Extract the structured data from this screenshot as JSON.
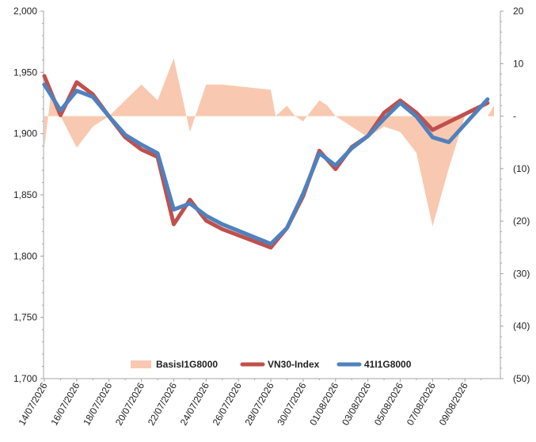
{
  "chart_data": {
    "type": "line",
    "title": "",
    "grid": false,
    "legend_position": "bottom-inside",
    "left_axis": {
      "ylim": [
        1700,
        2000
      ],
      "ticks": [
        2000,
        1950,
        1900,
        1850,
        1800,
        1750,
        1700
      ],
      "tick_labels": [
        "2,000",
        "1,950",
        "1,900",
        "1,850",
        "1,800",
        "1,750",
        "1,700"
      ]
    },
    "right_axis": {
      "ylim": [
        -50,
        20
      ],
      "ticks": [
        20,
        10,
        0,
        -10,
        -20,
        -30,
        -40,
        -50
      ],
      "tick_labels": [
        "20",
        "10",
        "-",
        "(10)",
        "(20)",
        "(30)",
        "(40)",
        "(50)"
      ]
    },
    "x_tick_labels": [
      "14/07/2026",
      "16/07/2026",
      "18/07/2026",
      "20/07/2026",
      "22/07/2026",
      "24/07/2026",
      "26/07/2026",
      "28/07/2026",
      "30/07/2026",
      "01/08/2026",
      "03/08/2026",
      "05/08/2026",
      "07/08/2026",
      "09/08/2026"
    ],
    "x_day_range": [
      0,
      27.8
    ],
    "series": [
      {
        "name": "BasisI1G8000",
        "type": "area",
        "axis": "right",
        "color": "#f8c9b0",
        "x": [
          0,
          0.4,
          1,
          2,
          3,
          4,
          5,
          6,
          7,
          8,
          9,
          10,
          11,
          14,
          14.3,
          15,
          15.5,
          16,
          17,
          17.5,
          18,
          19,
          20,
          21,
          22,
          23,
          24,
          25,
          26,
          26.5,
          27,
          27.4,
          27.8
        ],
        "values": [
          -6,
          4,
          0,
          -6,
          -2,
          0,
          3,
          6,
          3,
          11,
          -3,
          6,
          6,
          5,
          0,
          2,
          0,
          -1,
          3,
          2,
          0,
          -2,
          -4,
          -2,
          -3,
          -7,
          -21,
          -10,
          0,
          0,
          0,
          0,
          2
        ]
      },
      {
        "name": "VN30-Index",
        "type": "line",
        "axis": "left",
        "color": "#c0504d",
        "x": [
          0,
          1,
          2,
          3,
          4,
          5,
          6,
          7,
          8,
          9,
          10,
          11,
          14,
          15,
          16,
          17,
          18,
          19,
          20,
          21,
          22,
          23,
          24,
          27.4
        ],
        "values": [
          1947,
          1915,
          1942,
          1932,
          1914,
          1897,
          1887,
          1881,
          1826,
          1846,
          1829,
          1822,
          1807,
          1823,
          1849,
          1886,
          1871,
          1889,
          1898,
          1917,
          1927,
          1917,
          1903,
          1925
        ]
      },
      {
        "name": "41I1G8000",
        "type": "line",
        "axis": "left",
        "color": "#4f81bd",
        "x": [
          0,
          1,
          2,
          3,
          4,
          5,
          6,
          7,
          8,
          9,
          10,
          11,
          14,
          15,
          16,
          17,
          18,
          19,
          20,
          21,
          22,
          23,
          24,
          25,
          27.4
        ],
        "values": [
          1940,
          1919,
          1935,
          1930,
          1914,
          1899,
          1891,
          1884,
          1838,
          1843,
          1833,
          1826,
          1810,
          1823,
          1851,
          1884,
          1874,
          1888,
          1898,
          1912,
          1925,
          1914,
          1897,
          1893,
          1928
        ]
      }
    ]
  }
}
